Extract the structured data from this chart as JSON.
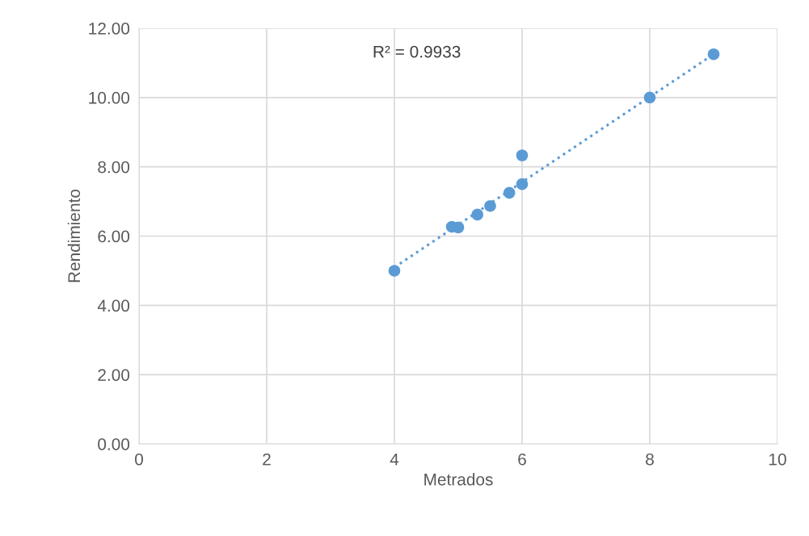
{
  "chart_data": {
    "type": "scatter",
    "xlabel": "Metrados",
    "ylabel": "Rendimiento",
    "annotations": [
      "R² = 0.9933"
    ],
    "series": [
      {
        "color": "#5b9bd5",
        "x": [
          4,
          4.9,
          5,
          5.3,
          5.5,
          5.8,
          6,
          6,
          8,
          9
        ],
        "values": [
          5.0,
          6.27,
          6.25,
          6.62,
          6.87,
          7.25,
          7.5,
          8.33,
          10.0,
          11.25
        ],
        "marker": "circle"
      },
      {
        "type": "line",
        "color": "#5b9bd5",
        "x": [
          4,
          9
        ],
        "values": [
          5.1,
          11.25
        ],
        "line_style": "dotted",
        "marker": "none"
      }
    ],
    "xlim": [
      0,
      10
    ],
    "xticks": [
      0,
      2,
      4,
      6,
      8,
      10
    ],
    "ylim": [
      0,
      12
    ],
    "yticks": [
      {
        "value": 0,
        "label": "0.00"
      },
      {
        "value": 2,
        "label": "2.00"
      },
      {
        "value": 4,
        "label": "4.00"
      },
      {
        "value": 6,
        "label": "6.00"
      },
      {
        "value": 8,
        "label": "8.00"
      },
      {
        "value": 10,
        "label": "10.00"
      },
      {
        "value": 12,
        "label": "12.00"
      }
    ],
    "grid": true
  }
}
